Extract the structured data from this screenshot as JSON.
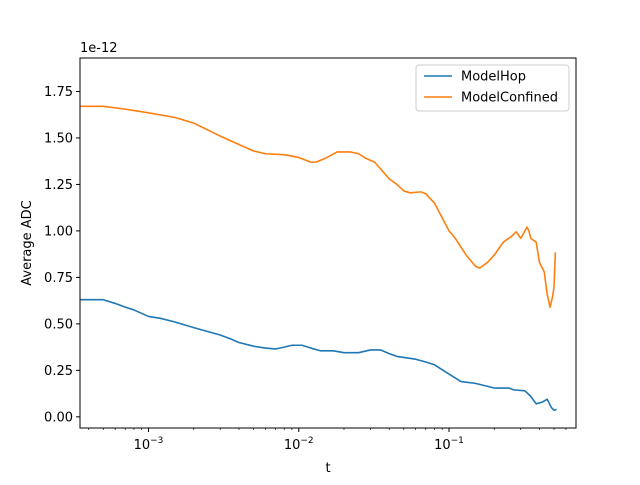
{
  "chart_data": {
    "type": "line",
    "title": "",
    "xlabel": "t",
    "ylabel": "Average ADC",
    "xscale": "log",
    "xlim": [
      0.00035,
      0.7
    ],
    "ylim": [
      -6e-14,
      1.93e-12
    ],
    "offset_text": "1e-12",
    "grid": false,
    "legend_position": "top-right",
    "x_ticks": [
      {
        "value": 0.001,
        "base": "10",
        "exp": "−3"
      },
      {
        "value": 0.01,
        "base": "10",
        "exp": "−2"
      },
      {
        "value": 0.1,
        "base": "10",
        "exp": "−1"
      }
    ],
    "y_ticks": [
      {
        "value": 0.0,
        "label": "0.00"
      },
      {
        "value": 2.5e-13,
        "label": "0.25"
      },
      {
        "value": 5e-13,
        "label": "0.50"
      },
      {
        "value": 7.5e-13,
        "label": "0.75"
      },
      {
        "value": 1e-12,
        "label": "1.00"
      },
      {
        "value": 1.25e-12,
        "label": "1.25"
      },
      {
        "value": 1.5e-12,
        "label": "1.50"
      },
      {
        "value": 1.75e-12,
        "label": "1.75"
      }
    ],
    "series": [
      {
        "name": "ModelHop",
        "color": "#1f77b4",
        "points": [
          [
            0.00035,
            6.3e-13
          ],
          [
            0.0004,
            6.3e-13
          ],
          [
            0.0005,
            6.3e-13
          ],
          [
            0.0006,
            6.1e-13
          ],
          [
            0.0007,
            5.9e-13
          ],
          [
            0.0008,
            5.75e-13
          ],
          [
            0.001,
            5.4e-13
          ],
          [
            0.0012,
            5.3e-13
          ],
          [
            0.0015,
            5.1e-13
          ],
          [
            0.002,
            4.8e-13
          ],
          [
            0.003,
            4.4e-13
          ],
          [
            0.0035,
            4.2e-13
          ],
          [
            0.004,
            4e-13
          ],
          [
            0.005,
            3.8e-13
          ],
          [
            0.006,
            3.7e-13
          ],
          [
            0.007,
            3.65e-13
          ],
          [
            0.008,
            3.75e-13
          ],
          [
            0.009,
            3.85e-13
          ],
          [
            0.0105,
            3.85e-13
          ],
          [
            0.012,
            3.7e-13
          ],
          [
            0.014,
            3.55e-13
          ],
          [
            0.017,
            3.55e-13
          ],
          [
            0.02,
            3.45e-13
          ],
          [
            0.025,
            3.45e-13
          ],
          [
            0.03,
            3.6e-13
          ],
          [
            0.035,
            3.6e-13
          ],
          [
            0.04,
            3.4e-13
          ],
          [
            0.045,
            3.25e-13
          ],
          [
            0.06,
            3.1e-13
          ],
          [
            0.07,
            2.95e-13
          ],
          [
            0.08,
            2.8e-13
          ],
          [
            0.1,
            2.3e-13
          ],
          [
            0.12,
            1.9e-13
          ],
          [
            0.15,
            1.8e-13
          ],
          [
            0.2,
            1.55e-13
          ],
          [
            0.25,
            1.55e-13
          ],
          [
            0.27,
            1.45e-13
          ],
          [
            0.32,
            1.4e-13
          ],
          [
            0.35,
            1.1e-13
          ],
          [
            0.38,
            7e-14
          ],
          [
            0.42,
            8e-14
          ],
          [
            0.45,
            9.5e-14
          ],
          [
            0.48,
            5e-14
          ],
          [
            0.5,
            3.5e-14
          ],
          [
            0.52,
            4e-14
          ]
        ]
      },
      {
        "name": "ModelConfined",
        "color": "#ff7f0e",
        "points": [
          [
            0.00035,
            1.67e-12
          ],
          [
            0.0005,
            1.67e-12
          ],
          [
            0.0007,
            1.655e-12
          ],
          [
            0.001,
            1.635e-12
          ],
          [
            0.0015,
            1.61e-12
          ],
          [
            0.002,
            1.58e-12
          ],
          [
            0.003,
            1.51e-12
          ],
          [
            0.004,
            1.465e-12
          ],
          [
            0.005,
            1.43e-12
          ],
          [
            0.006,
            1.415e-12
          ],
          [
            0.008,
            1.41e-12
          ],
          [
            0.01,
            1.395e-12
          ],
          [
            0.012,
            1.37e-12
          ],
          [
            0.013,
            1.37e-12
          ],
          [
            0.015,
            1.39e-12
          ],
          [
            0.018,
            1.425e-12
          ],
          [
            0.022,
            1.425e-12
          ],
          [
            0.025,
            1.415e-12
          ],
          [
            0.028,
            1.39e-12
          ],
          [
            0.032,
            1.37e-12
          ],
          [
            0.04,
            1.28e-12
          ],
          [
            0.045,
            1.25e-12
          ],
          [
            0.05,
            1.215e-12
          ],
          [
            0.055,
            1.205e-12
          ],
          [
            0.065,
            1.21e-12
          ],
          [
            0.07,
            1.2e-12
          ],
          [
            0.08,
            1.15e-12
          ],
          [
            0.1,
            1e-12
          ],
          [
            0.11,
            9.6e-13
          ],
          [
            0.13,
            8.7e-13
          ],
          [
            0.15,
            8.1e-13
          ],
          [
            0.16,
            8e-13
          ],
          [
            0.18,
            8.3e-13
          ],
          [
            0.2,
            8.7e-13
          ],
          [
            0.23,
            9.4e-13
          ],
          [
            0.26,
            9.7e-13
          ],
          [
            0.28,
            9.95e-13
          ],
          [
            0.3,
            9.6e-13
          ],
          [
            0.32,
            1e-12
          ],
          [
            0.33,
            1.02e-12
          ],
          [
            0.34,
            1e-12
          ],
          [
            0.35,
            9.6e-13
          ],
          [
            0.38,
            9.4e-13
          ],
          [
            0.4,
            8.3e-13
          ],
          [
            0.43,
            7.8e-13
          ],
          [
            0.45,
            6.6e-13
          ],
          [
            0.47,
            5.9e-13
          ],
          [
            0.49,
            6.5e-13
          ],
          [
            0.5,
            7e-13
          ],
          [
            0.51,
            8.85e-13
          ]
        ]
      }
    ]
  }
}
